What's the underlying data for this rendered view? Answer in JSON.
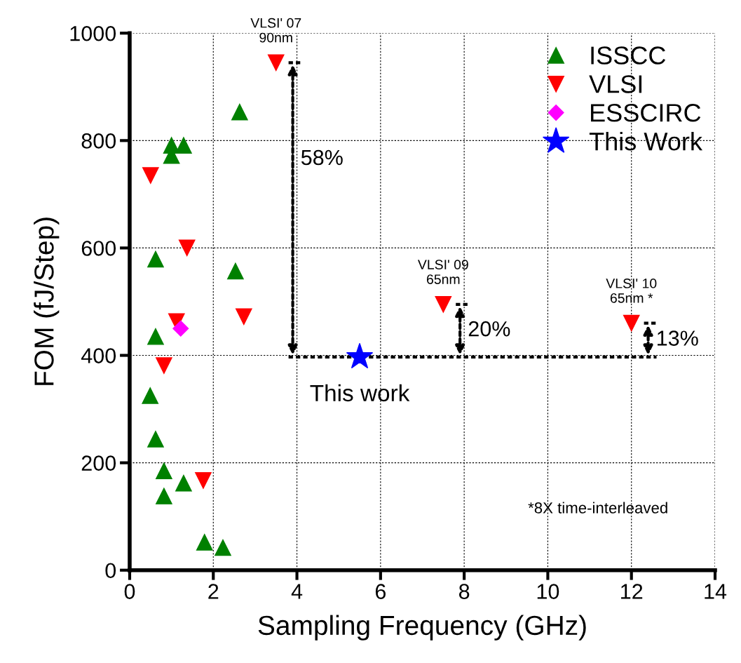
{
  "chart_data": {
    "type": "scatter",
    "xlabel": "Sampling Frequency (GHz)",
    "ylabel": "FOM (fJ/Step)",
    "xlim": [
      0,
      14
    ],
    "xticks": [
      0,
      2,
      4,
      6,
      8,
      10,
      12,
      14
    ],
    "ylim": [
      0,
      1000
    ],
    "yticks": [
      0,
      200,
      400,
      600,
      800,
      1000
    ],
    "grid": true,
    "legend": "top right",
    "series": [
      {
        "name": "ISSCC",
        "color": "#008000",
        "marker": "triangle",
        "x": [
          2.63,
          1.0,
          1.29,
          1.0,
          0.62,
          2.53,
          0.62,
          0.49,
          0.62,
          0.82,
          1.29,
          0.82,
          1.79,
          2.23
        ],
        "values": [
          853,
          791,
          791,
          772,
          579,
          557,
          435,
          325,
          244,
          185,
          162,
          138,
          52,
          42
        ]
      },
      {
        "name": "VLSI",
        "color": "#ff0000",
        "marker": "triangle_down",
        "x": [
          3.5,
          0.5,
          1.37,
          2.73,
          1.12,
          0.82,
          1.76,
          7.5,
          12.0
        ],
        "values": [
          945,
          735,
          600,
          472,
          463,
          381,
          167,
          495,
          460
        ]
      },
      {
        "name": "ESSCIRC",
        "color": "#ff00ff",
        "marker": "diamond",
        "x": [
          1.22
        ],
        "values": [
          450
        ]
      },
      {
        "name": "This Work",
        "color": "#0000ff",
        "marker": "star",
        "x": [
          5.5
        ],
        "values": [
          397
        ]
      }
    ],
    "annotations": [
      {
        "text": "VLSI' 07\n90nm",
        "x": 3.5,
        "y": 945
      },
      {
        "text": "VLSI' 09\n65nm",
        "x": 7.5,
        "y": 495
      },
      {
        "text": "VLSI' 10\n65nm *",
        "x": 12.0,
        "y": 460
      },
      {
        "text": "This work",
        "x": 5.5,
        "y": 397
      },
      "58%",
      "20%",
      "13%",
      "*8X time-interleaved"
    ]
  }
}
